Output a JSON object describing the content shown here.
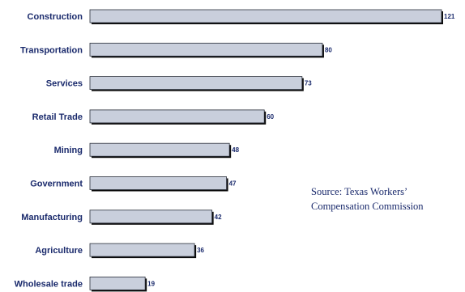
{
  "chart_data": {
    "type": "bar",
    "orientation": "horizontal",
    "categories": [
      "Construction",
      "Transportation",
      "Services",
      "Retail Trade",
      "Mining",
      "Government",
      "Manufacturing",
      "Agriculture",
      "Wholesale trade"
    ],
    "values": [
      121,
      80,
      73,
      60,
      48,
      47,
      42,
      36,
      19
    ],
    "title": "",
    "xlabel": "",
    "ylabel": "",
    "xlim": [
      0,
      121
    ],
    "grid": false,
    "legend": "none",
    "colors": {
      "bar_fill": "#c9cfdc",
      "bar_shadow": "#0a0a0a",
      "text": "#1a2a6c"
    }
  },
  "annotation": {
    "source_line1": "Source: Texas Workers’",
    "source_line2": "Compensation Commission"
  }
}
